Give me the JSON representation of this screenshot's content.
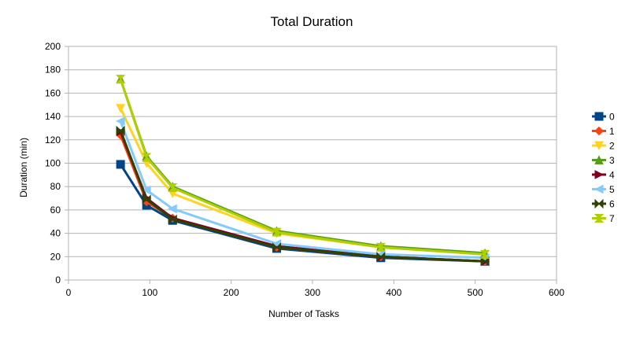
{
  "chart_data": {
    "type": "line",
    "title": "Total Duration",
    "xlabel": "Number of Tasks",
    "ylabel": "Duration (min)",
    "xlim": [
      0,
      600
    ],
    "ylim": [
      0,
      200
    ],
    "xticks": [
      0,
      100,
      200,
      300,
      400,
      500,
      600
    ],
    "yticks": [
      0,
      20,
      40,
      60,
      80,
      100,
      120,
      140,
      160,
      180,
      200
    ],
    "grid": "horizontal",
    "legend_position": "right",
    "x": [
      64,
      96,
      128,
      256,
      384,
      512
    ],
    "series": [
      {
        "name": "0",
        "color": "#004586",
        "marker": "square",
        "values": [
          99,
          64,
          51,
          27,
          19,
          16
        ]
      },
      {
        "name": "1",
        "color": "#ff420e",
        "marker": "diamond",
        "values": [
          124,
          67,
          53,
          28,
          20,
          16
        ]
      },
      {
        "name": "2",
        "color": "#ffd320",
        "marker": "triangle-down",
        "values": [
          147,
          100,
          74,
          40,
          28,
          22
        ]
      },
      {
        "name": "3",
        "color": "#579d1c",
        "marker": "triangle-up",
        "values": [
          172,
          106,
          80,
          42,
          29,
          23
        ]
      },
      {
        "name": "4",
        "color": "#7e0021",
        "marker": "triangle-right",
        "values": [
          127,
          70,
          53,
          29,
          20,
          16
        ]
      },
      {
        "name": "5",
        "color": "#83caff",
        "marker": "triangle-left",
        "values": [
          136,
          77,
          61,
          31,
          22,
          19
        ]
      },
      {
        "name": "6",
        "color": "#314004",
        "marker": "bowtie",
        "values": [
          128,
          69,
          52,
          28,
          20,
          16
        ]
      },
      {
        "name": "7",
        "color": "#aecf00",
        "marker": "hourglass",
        "values": [
          172,
          105,
          79,
          41,
          28,
          22
        ]
      }
    ]
  }
}
